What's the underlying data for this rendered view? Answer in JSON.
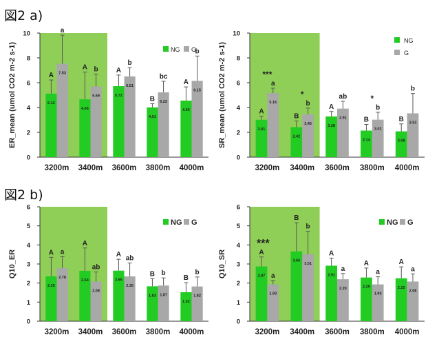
{
  "figure_labels": {
    "a": "図2 a)",
    "b": "図2 b)"
  },
  "colors": {
    "ng": "#22cc22",
    "g": "#a8a8a8",
    "highlight": "#8fcf57",
    "axis": "#333333"
  },
  "chart_data": [
    {
      "type": "bar",
      "ylabel": "ER_mean (umol CO2 m-2 s-1)",
      "ylim": [
        0,
        10
      ],
      "yticks": [
        0,
        2,
        4,
        6,
        8,
        10
      ],
      "categories": [
        "3200m",
        "3400m",
        "3600m",
        "3800m",
        "4000m"
      ],
      "highlight_categories": 2,
      "legend": {
        "position": "top-right",
        "layout": "horizontal"
      },
      "series": [
        {
          "name": "NG",
          "values": [
            5.12,
            4.66,
            5.72,
            4.01,
            4.56
          ],
          "value_labels": [
            "5.12",
            "4.66",
            "5.72",
            "4.01",
            "4.56"
          ],
          "error": [
            1.1,
            2.2,
            0.9,
            0.3,
            1.1
          ],
          "letters": [
            "A",
            "A",
            "A",
            "B",
            "A"
          ]
        },
        {
          "name": "G",
          "values": [
            7.53,
            5.69,
            6.51,
            5.22,
            6.15
          ],
          "value_labels": [
            "7.53",
            "5.69",
            "6.51",
            "5.22",
            "6.15"
          ],
          "error": [
            2.3,
            1.0,
            0.7,
            0.9,
            2.0
          ],
          "letters": [
            "a",
            "b",
            "b",
            "bc",
            "b"
          ]
        }
      ],
      "significance": [
        "",
        "",
        "",
        "",
        ""
      ]
    },
    {
      "type": "bar",
      "ylabel": "SR_mean (umol CO2 m-2 s-1)",
      "ylim": [
        0,
        10
      ],
      "yticks": [
        0,
        2,
        4,
        6,
        8,
        10
      ],
      "categories": [
        "3200m",
        "3400m",
        "3600m",
        "3800m",
        "4000m"
      ],
      "highlight_categories": 2,
      "legend": {
        "position": "top-right",
        "layout": "vertical"
      },
      "series": [
        {
          "name": "NG",
          "values": [
            3.01,
            2.42,
            3.28,
            2.14,
            2.08
          ],
          "value_labels": [
            "3.01",
            "2.42",
            "3.28",
            "2.14",
            "2.08"
          ],
          "error": [
            0.3,
            0.5,
            0.4,
            0.5,
            0.6
          ],
          "letters": [
            "A",
            "B",
            "A",
            "B",
            "B"
          ]
        },
        {
          "name": "G",
          "values": [
            5.16,
            3.45,
            3.91,
            3.02,
            3.53
          ],
          "value_labels": [
            "5.16",
            "3.45",
            "3.91",
            "3.02",
            "3.53"
          ],
          "error": [
            0.4,
            0.5,
            0.6,
            0.6,
            1.6
          ],
          "letters": [
            "a",
            "b",
            "ab",
            "b",
            "b"
          ]
        }
      ],
      "significance": [
        "***",
        "*",
        "",
        "*",
        ""
      ]
    },
    {
      "type": "bar",
      "ylabel": "Q10_ER",
      "ylim": [
        0,
        6
      ],
      "yticks": [
        0,
        1,
        2,
        3,
        4,
        5,
        6
      ],
      "categories": [
        "3200m",
        "3400m",
        "3600m",
        "3800m",
        "4000m"
      ],
      "highlight_categories": 2,
      "legend": {
        "position": "top-right",
        "layout": "horizontal"
      },
      "series": [
        {
          "name": "NG",
          "values": [
            2.35,
            2.64,
            2.65,
            1.83,
            1.52
          ],
          "value_labels": [
            "2.35",
            "2.64",
            "2.65",
            "1.83",
            "1.52"
          ],
          "error": [
            1.0,
            1.2,
            0.6,
            0.4,
            0.5
          ],
          "letters": [
            "A",
            "A",
            "A",
            "B",
            "B"
          ]
        },
        {
          "name": "G",
          "values": [
            2.78,
            2.08,
            2.35,
            1.87,
            1.82
          ],
          "value_labels": [
            "2.78",
            "2.08",
            "2.35",
            "1.87",
            "1.82"
          ],
          "error": [
            0.6,
            0.5,
            0.7,
            0.4,
            0.5
          ],
          "letters": [
            "a",
            "ab",
            "ab",
            "b",
            "b"
          ]
        }
      ],
      "significance": [
        "",
        "",
        "",
        "",
        ""
      ]
    },
    {
      "type": "bar",
      "ylabel": "Q10_SR",
      "ylim": [
        0,
        6
      ],
      "yticks": [
        0,
        1,
        2,
        3,
        4,
        5,
        6
      ],
      "categories": [
        "3200m",
        "3400m",
        "3600m",
        "3800m",
        "4000m"
      ],
      "highlight_categories": 2,
      "legend": {
        "position": "top-right",
        "layout": "horizontal"
      },
      "series": [
        {
          "name": "NG",
          "values": [
            2.87,
            3.66,
            2.91,
            2.29,
            2.25
          ],
          "value_labels": [
            "2.87",
            "3.66",
            "2.91",
            "2.29",
            "2.25"
          ],
          "error": [
            0.5,
            1.5,
            0.4,
            0.5,
            0.6
          ],
          "letters": [
            "A",
            "B",
            "A",
            "A",
            "A"
          ]
        },
        {
          "name": "G",
          "values": [
            1.93,
            3.51,
            2.2,
            1.93,
            2.08
          ],
          "value_labels": [
            "1.93",
            "3.51",
            "2.20",
            "1.93",
            "2.08"
          ],
          "error": [
            0.2,
            1.2,
            0.3,
            0.4,
            0.4
          ],
          "letters": [
            "a",
            "b",
            "a",
            "a",
            "a"
          ]
        }
      ],
      "significance": [
        "***",
        "",
        "",
        "",
        ""
      ]
    }
  ]
}
